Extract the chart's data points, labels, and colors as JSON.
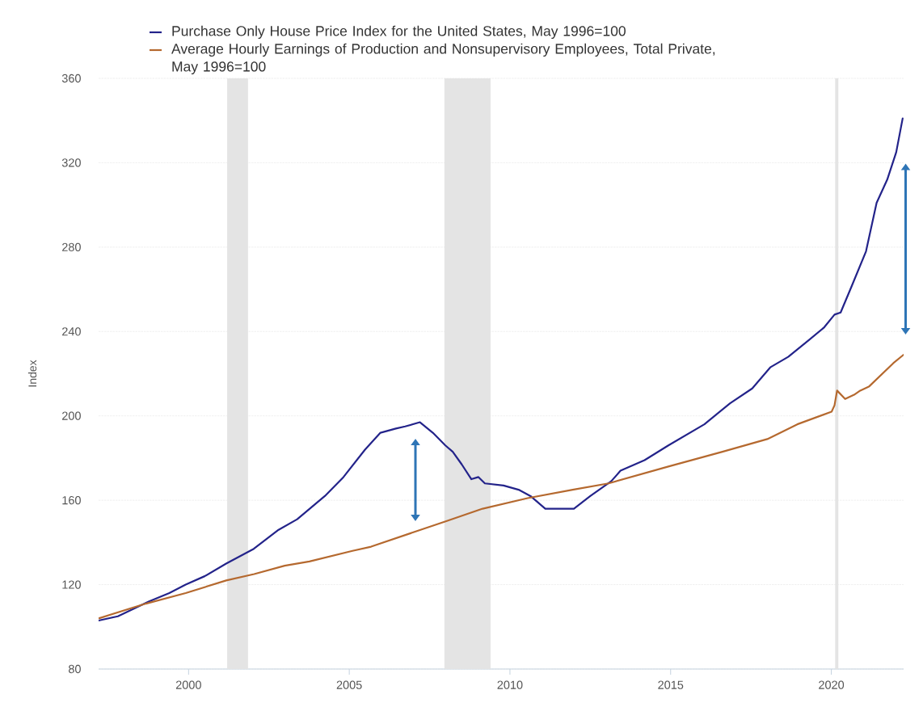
{
  "chart_data": {
    "type": "line",
    "ylabel": "Index",
    "xlim": [
      1997.2,
      2022.25
    ],
    "ylim": [
      80,
      360
    ],
    "xticks": [
      2000,
      2005,
      2010,
      2015,
      2020
    ],
    "yticks": [
      80,
      120,
      160,
      200,
      240,
      280,
      320,
      360
    ],
    "grid": "y",
    "legend": "top",
    "bands": [
      {
        "axis": "x",
        "from": 2001.2,
        "to": 2001.85,
        "color": "#e4e4e4"
      },
      {
        "axis": "x",
        "from": 2007.96,
        "to": 2009.4,
        "color": "#e4e4e4"
      },
      {
        "axis": "x",
        "from": 2020.12,
        "to": 2020.22,
        "color": "#e4e4e4"
      }
    ],
    "series": [
      {
        "name": "Purchase Only House Price Index for the United States, May 1996=100",
        "color": "#23238a",
        "x": [
          1997.2,
          1997.8,
          1998.76,
          1999.4,
          1999.91,
          2000.5,
          2001.17,
          2002.03,
          2002.8,
          2003.38,
          2004.24,
          2004.82,
          2005.49,
          2005.97,
          2006.45,
          2006.74,
          2007.2,
          2007.6,
          2007.99,
          2008.22,
          2008.5,
          2008.8,
          2009.02,
          2009.22,
          2009.8,
          2010.27,
          2010.64,
          2011.1,
          2011.67,
          2011.99,
          2012.5,
          2013.15,
          2013.44,
          2014.19,
          2014.93,
          2016.05,
          2016.85,
          2017.54,
          2018.1,
          2018.66,
          2019.31,
          2019.78,
          2020.1,
          2020.29,
          2020.62,
          2021.08,
          2021.41,
          2021.74,
          2022.02,
          2022.22
        ],
        "values": [
          103,
          105,
          112,
          116,
          120,
          124,
          130,
          137,
          146,
          151,
          162,
          171,
          184,
          192,
          194,
          195,
          197,
          192,
          186,
          183,
          177,
          170,
          171,
          168,
          167,
          165,
          162,
          156,
          156,
          156,
          162,
          169,
          174,
          179,
          186,
          196,
          206,
          213,
          223,
          228,
          236,
          242,
          248,
          249,
          261,
          278,
          301,
          312,
          325,
          341
        ]
      },
      {
        "name": "Average Hourly Earnings of Production and Nonsupervisory Employees, Total Private, May 1996=100",
        "color": "#b5692f",
        "x": [
          1997.2,
          1998.67,
          1999.91,
          2001.17,
          2002.04,
          2002.99,
          2003.76,
          2005.1,
          2005.68,
          2007.03,
          2008.0,
          2009.15,
          2010.55,
          2011.95,
          2013.07,
          2014.93,
          2016.61,
          2018.01,
          2018.94,
          2020.01,
          2020.1,
          2020.18,
          2020.43,
          2020.71,
          2020.9,
          2021.18,
          2021.93,
          2022.25
        ],
        "values": [
          104,
          111,
          116,
          122,
          125,
          129,
          131,
          136,
          138,
          145,
          150,
          156,
          161,
          165,
          168,
          176,
          183,
          189,
          196,
          202,
          205,
          212,
          208,
          210,
          212,
          214,
          225,
          229
        ]
      }
    ]
  }
}
